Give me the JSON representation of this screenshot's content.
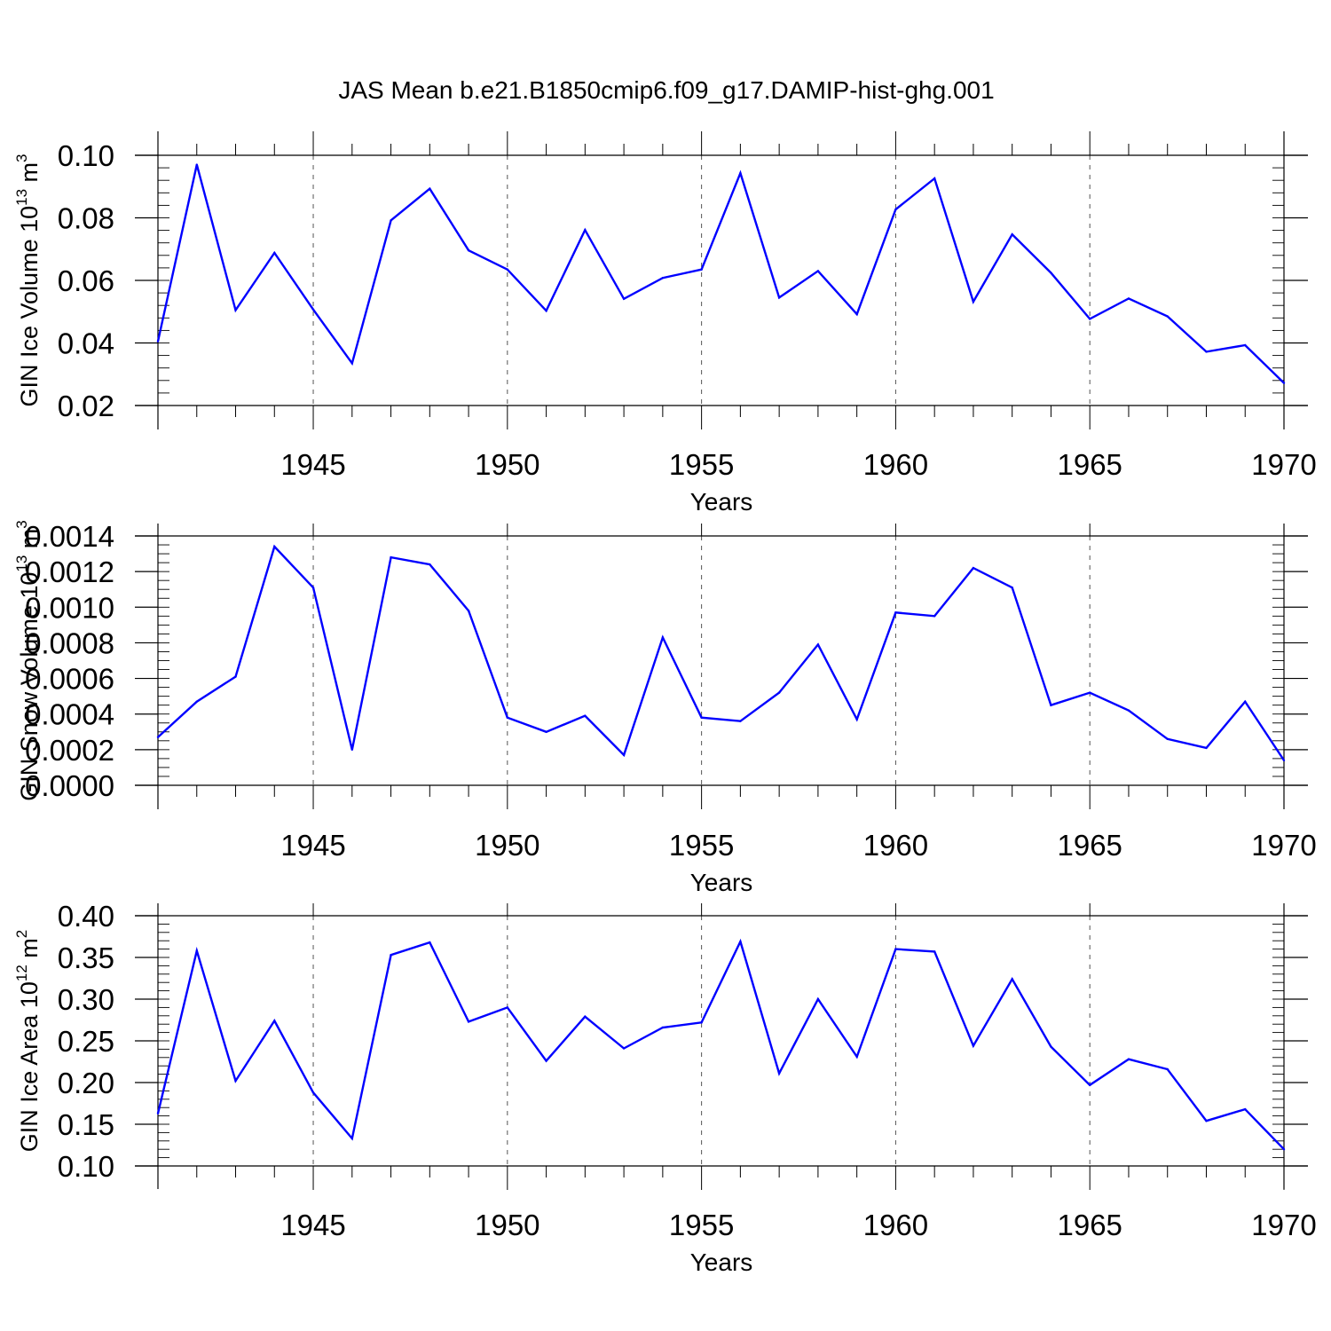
{
  "title": "JAS Mean b.e21.B1850cmip6.f09_g17.DAMIP-hist-ghg.001",
  "colors": {
    "line": "#0000ff",
    "axes": "#000000",
    "grid": "#555555"
  },
  "chart_data": [
    {
      "type": "line",
      "ylabel": {
        "text": "GIN Ice Volume 10",
        "exp": "13",
        "unit": " m",
        "unit_exp": "3"
      },
      "xlabel": "Years",
      "x": [
        1941,
        1942,
        1943,
        1944,
        1945,
        1946,
        1947,
        1948,
        1949,
        1950,
        1951,
        1952,
        1953,
        1954,
        1955,
        1956,
        1957,
        1958,
        1959,
        1960,
        1961,
        1962,
        1963,
        1964,
        1965,
        1966,
        1967,
        1968,
        1969,
        1970
      ],
      "values": [
        0.0405,
        0.097,
        0.0505,
        0.0688,
        0.0507,
        0.0335,
        0.0792,
        0.0893,
        0.0696,
        0.0635,
        0.0503,
        0.0761,
        0.0541,
        0.0608,
        0.0635,
        0.0943,
        0.0545,
        0.063,
        0.0492,
        0.0827,
        0.0926,
        0.0532,
        0.0747,
        0.0624,
        0.0477,
        0.0542,
        0.0485,
        0.0372,
        0.0393,
        0.0272
      ],
      "xlim": [
        1941,
        1970
      ],
      "ylim": [
        0.02,
        0.1
      ],
      "xticks": [
        1945,
        1950,
        1955,
        1960,
        1965,
        1970
      ],
      "yticks": [
        0.02,
        0.04,
        0.06,
        0.08,
        0.1
      ],
      "ytick_labels": [
        "0.02",
        "0.04",
        "0.06",
        "0.08",
        "0.10"
      ],
      "minor_y_step": 0.004
    },
    {
      "type": "line",
      "ylabel": {
        "text": "GIN Snow Volume 10",
        "exp": "13",
        "unit": " m",
        "unit_exp": "3"
      },
      "xlabel": "Years",
      "x": [
        1941,
        1942,
        1943,
        1944,
        1945,
        1946,
        1947,
        1948,
        1949,
        1950,
        1951,
        1952,
        1953,
        1954,
        1955,
        1956,
        1957,
        1958,
        1959,
        1960,
        1961,
        1962,
        1963,
        1964,
        1965,
        1966,
        1967,
        1968,
        1969,
        1970
      ],
      "values": [
        0.00027,
        0.00047,
        0.00061,
        0.00134,
        0.00111,
        0.0002,
        0.00128,
        0.00124,
        0.00098,
        0.00038,
        0.0003,
        0.00039,
        0.00017,
        0.00083,
        0.00038,
        0.00036,
        0.00052,
        0.00079,
        0.00037,
        0.00097,
        0.00095,
        0.00122,
        0.00111,
        0.00045,
        0.00052,
        0.00042,
        0.00026,
        0.00021,
        0.00047,
        0.00014
      ],
      "xlim": [
        1941,
        1970
      ],
      "ylim": [
        0.0,
        0.0014
      ],
      "xticks": [
        1945,
        1950,
        1955,
        1960,
        1965,
        1970
      ],
      "yticks": [
        0.0,
        0.0002,
        0.0004,
        0.0006,
        0.0008,
        0.001,
        0.0012,
        0.0014
      ],
      "ytick_labels": [
        "0.0000",
        "0.0002",
        "0.0004",
        "0.0006",
        "0.0008",
        "0.0010",
        "0.0012",
        "0.0014"
      ],
      "minor_y_step": 5e-05
    },
    {
      "type": "line",
      "ylabel": {
        "text": "GIN Ice Area 10",
        "exp": "12",
        "unit": " m",
        "unit_exp": "2"
      },
      "xlabel": "Years",
      "x": [
        1941,
        1942,
        1943,
        1944,
        1945,
        1946,
        1947,
        1948,
        1949,
        1950,
        1951,
        1952,
        1953,
        1954,
        1955,
        1956,
        1957,
        1958,
        1959,
        1960,
        1961,
        1962,
        1963,
        1964,
        1965,
        1966,
        1967,
        1968,
        1969,
        1970
      ],
      "values": [
        0.163,
        0.358,
        0.202,
        0.274,
        0.188,
        0.133,
        0.353,
        0.368,
        0.273,
        0.29,
        0.226,
        0.279,
        0.241,
        0.266,
        0.272,
        0.369,
        0.211,
        0.3,
        0.231,
        0.36,
        0.357,
        0.244,
        0.324,
        0.243,
        0.197,
        0.228,
        0.216,
        0.154,
        0.168,
        0.12
      ],
      "xlim": [
        1941,
        1970
      ],
      "ylim": [
        0.1,
        0.4
      ],
      "xticks": [
        1945,
        1950,
        1955,
        1960,
        1965,
        1970
      ],
      "yticks": [
        0.1,
        0.15,
        0.2,
        0.25,
        0.3,
        0.35,
        0.4
      ],
      "ytick_labels": [
        "0.10",
        "0.15",
        "0.20",
        "0.25",
        "0.30",
        "0.35",
        "0.40"
      ],
      "minor_y_step": 0.01
    }
  ]
}
